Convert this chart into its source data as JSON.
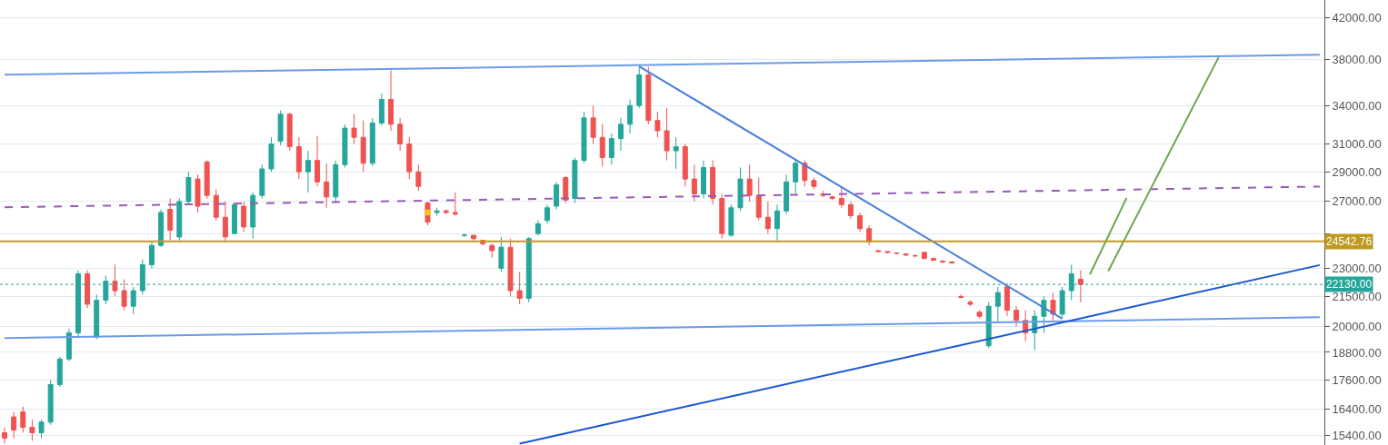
{
  "chart_data": {
    "type": "candlestick",
    "log": "y",
    "grid": "y",
    "tick_labels": "y",
    "categories": [
      null,
      null,
      null,
      null,
      null,
      null,
      null,
      null,
      null,
      null,
      null,
      null,
      null,
      null,
      null,
      null,
      null,
      null,
      null,
      null,
      null,
      null,
      null,
      null,
      null,
      null,
      null,
      null,
      null,
      null,
      null,
      null,
      null,
      null,
      null,
      null,
      null,
      null,
      null,
      null,
      null,
      null,
      null,
      null,
      null,
      null,
      null,
      null,
      null,
      null,
      null,
      null,
      null,
      null,
      null,
      null,
      null,
      null,
      null,
      null,
      null,
      null,
      null,
      null,
      null,
      null,
      null,
      null,
      null,
      null,
      null,
      null,
      null,
      null,
      null,
      null,
      null,
      null,
      null,
      null,
      null,
      null,
      null,
      null,
      null,
      null,
      null,
      null,
      null,
      null,
      null,
      null,
      null,
      null,
      null,
      null,
      null,
      null,
      null,
      null,
      null,
      null,
      null,
      null,
      null,
      null,
      null,
      null,
      null,
      null,
      null,
      null,
      null,
      null,
      null,
      null,
      null,
      null,
      null,
      null,
      null,
      null,
      null,
      null,
      null,
      null,
      null,
      null,
      null,
      null,
      null,
      null,
      null,
      null,
      null,
      null,
      null,
      null,
      null,
      null,
      null,
      null,
      null,
      null
    ],
    "ohlc": [
      [
        15500,
        15700,
        15100,
        15300
      ],
      [
        16100,
        16300,
        15300,
        15600
      ],
      [
        16300,
        16500,
        15500,
        15700
      ],
      [
        15700,
        16000,
        15200,
        15500
      ],
      [
        15500,
        16000,
        15300,
        15900
      ],
      [
        15900,
        17600,
        15800,
        17400
      ],
      [
        17400,
        18600,
        17300,
        18500
      ],
      [
        18500,
        19900,
        18400,
        19700
      ],
      [
        19700,
        22900,
        19500,
        22700
      ],
      [
        22700,
        22900,
        20900,
        21100
      ],
      [
        19500,
        21600,
        19400,
        21300
      ],
      [
        21300,
        22600,
        21100,
        22300
      ],
      [
        22300,
        23200,
        21500,
        21800
      ],
      [
        21800,
        22400,
        20800,
        21000
      ],
      [
        21000,
        22000,
        20600,
        21800
      ],
      [
        21800,
        23500,
        21600,
        23200
      ],
      [
        23200,
        24500,
        23000,
        24300
      ],
      [
        24300,
        26500,
        24200,
        26300
      ],
      [
        26500,
        27200,
        24600,
        25200
      ],
      [
        24800,
        27200,
        24600,
        27000
      ],
      [
        27000,
        29000,
        26800,
        28600
      ],
      [
        28500,
        28800,
        26300,
        26700
      ],
      [
        29700,
        29800,
        27200,
        27400
      ],
      [
        27400,
        27800,
        25800,
        26000
      ],
      [
        26000,
        27000,
        24500,
        24800
      ],
      [
        25000,
        26900,
        25000,
        26800
      ],
      [
        26700,
        27000,
        25100,
        25400
      ],
      [
        25400,
        27600,
        24700,
        27400
      ],
      [
        27400,
        29500,
        27200,
        29200
      ],
      [
        29200,
        31500,
        29000,
        31000
      ],
      [
        31200,
        33600,
        30900,
        33300
      ],
      [
        33300,
        33400,
        30500,
        30800
      ],
      [
        30800,
        31500,
        28500,
        29000
      ],
      [
        29000,
        30500,
        27600,
        29800
      ],
      [
        29800,
        31600,
        28000,
        28300
      ],
      [
        28300,
        29600,
        26600,
        27300
      ],
      [
        27300,
        29800,
        27000,
        29500
      ],
      [
        29500,
        32500,
        29300,
        32200
      ],
      [
        32200,
        33300,
        31000,
        31500
      ],
      [
        31500,
        32800,
        29000,
        29600
      ],
      [
        29600,
        33000,
        29400,
        32600
      ],
      [
        32600,
        35000,
        32400,
        34500
      ],
      [
        34500,
        37000,
        32000,
        32500
      ],
      [
        32500,
        33000,
        30500,
        31000
      ],
      [
        31000,
        31500,
        28500,
        29000
      ],
      [
        29000,
        29500,
        27700,
        28000
      ],
      [
        26900,
        27000,
        25500,
        25700
      ],
      [
        26300,
        26600,
        26100,
        26400
      ],
      [
        26400,
        26500,
        26200,
        26300
      ],
      [
        26300,
        27600,
        26100,
        26200
      ],
      [
        24900,
        25000,
        24800,
        24900
      ],
      [
        24900,
        24900,
        24600,
        24700
      ],
      [
        24600,
        24600,
        24300,
        24400
      ],
      [
        24300,
        24400,
        23600,
        24000
      ],
      [
        23000,
        24800,
        22800,
        24200
      ],
      [
        24200,
        24700,
        21500,
        21800
      ],
      [
        21800,
        22800,
        21100,
        21400
      ],
      [
        21400,
        24800,
        21200,
        24700
      ],
      [
        25000,
        25800,
        24900,
        25600
      ],
      [
        25800,
        26800,
        25600,
        26600
      ],
      [
        26700,
        28300,
        26500,
        28100
      ],
      [
        28600,
        28700,
        26900,
        27100
      ],
      [
        27200,
        30000,
        26900,
        29800
      ],
      [
        29800,
        33500,
        29600,
        33000
      ],
      [
        33000,
        34000,
        31000,
        31500
      ],
      [
        31500,
        32500,
        29400,
        30000
      ],
      [
        30000,
        31800,
        29500,
        31400
      ],
      [
        31400,
        33000,
        30500,
        32500
      ],
      [
        32500,
        34500,
        31800,
        34000
      ],
      [
        34000,
        37300,
        33800,
        36600
      ],
      [
        36600,
        37300,
        32500,
        32800
      ],
      [
        32800,
        33500,
        31500,
        32000
      ],
      [
        32000,
        33800,
        29800,
        30500
      ],
      [
        30500,
        31500,
        29200,
        30800
      ],
      [
        30800,
        31000,
        28000,
        28500
      ],
      [
        28500,
        29500,
        27000,
        27500
      ],
      [
        27500,
        29800,
        27200,
        29300
      ],
      [
        29300,
        29800,
        26800,
        27200
      ],
      [
        27200,
        27500,
        24700,
        25000
      ],
      [
        24900,
        26800,
        24800,
        26600
      ],
      [
        26600,
        29300,
        26400,
        28500
      ],
      [
        28500,
        29500,
        27000,
        27400
      ],
      [
        27400,
        28600,
        25800,
        26000
      ],
      [
        26000,
        27000,
        25000,
        25300
      ],
      [
        25300,
        26800,
        24600,
        26400
      ],
      [
        26400,
        28800,
        26200,
        28300
      ],
      [
        28300,
        29900,
        27500,
        29600
      ],
      [
        29600,
        29800,
        28000,
        28400
      ],
      [
        28400,
        28600,
        27800,
        28000
      ],
      [
        27500,
        27700,
        27300,
        27400
      ],
      [
        27300,
        27400,
        27100,
        27200
      ],
      [
        27200,
        28000,
        26600,
        26800
      ],
      [
        26800,
        27000,
        25900,
        26100
      ],
      [
        26100,
        26300,
        25100,
        25300
      ],
      [
        25300,
        25500,
        24300,
        24500
      ],
      [
        24000,
        24000,
        23900,
        23950
      ],
      [
        23950,
        23950,
        23850,
        23900
      ],
      [
        23850,
        23900,
        23800,
        23850
      ],
      [
        23800,
        23850,
        23700,
        23750
      ],
      [
        23700,
        23800,
        23650,
        23700
      ],
      [
        23900,
        23900,
        23500,
        23550
      ],
      [
        23550,
        23600,
        23400,
        23450
      ],
      [
        23400,
        23450,
        23300,
        23350
      ],
      [
        23350,
        23400,
        23250,
        23300
      ],
      [
        21500,
        21600,
        21400,
        21450
      ],
      [
        21200,
        21300,
        21000,
        21100
      ],
      [
        20700,
        20800,
        20400,
        20500
      ],
      [
        19100,
        21200,
        19000,
        21000
      ],
      [
        21000,
        22000,
        20200,
        21700
      ],
      [
        22000,
        22200,
        20500,
        20800
      ],
      [
        20800,
        21000,
        20000,
        20300
      ],
      [
        20300,
        20800,
        19300,
        19700
      ],
      [
        19700,
        20800,
        18900,
        20500
      ],
      [
        20500,
        21500,
        19700,
        21300
      ],
      [
        21300,
        21700,
        20300,
        20600
      ],
      [
        20600,
        22000,
        20400,
        21800
      ],
      [
        21800,
        23200,
        21300,
        22700
      ],
      [
        22400,
        22900,
        21200,
        22130
      ],
      null,
      null,
      null,
      null,
      null,
      null,
      null,
      null,
      null,
      null,
      null,
      null,
      null,
      null,
      null,
      null,
      null,
      null,
      null,
      null,
      null,
      null,
      null,
      null,
      null,
      null
    ],
    "colors": [
      "#ef5350",
      "#ef5350",
      "#ef5350",
      "#ef5350",
      "#26a69a",
      "#26a69a",
      "#26a69a",
      "#26a69a",
      "#26a69a",
      "#ef5350",
      "#26a69a",
      "#26a69a",
      "#ef5350",
      "#ef5350",
      "#26a69a",
      "#26a69a",
      "#26a69a",
      "#26a69a",
      "#ef5350",
      "#26a69a",
      "#26a69a",
      "#ef5350",
      "#ef5350",
      "#ef5350",
      "#ef5350",
      "#26a69a",
      "#ef5350",
      "#26a69a",
      "#26a69a",
      "#26a69a",
      "#26a69a",
      "#ef5350",
      "#ef5350",
      "#26a69a",
      "#ef5350",
      "#ef5350",
      "#26a69a",
      "#26a69a",
      "#ef5350",
      "#ef5350",
      "#26a69a",
      "#26a69a",
      "#ef5350",
      "#ef5350",
      "#ef5350",
      "#ef5350",
      "#ef5350",
      "#26a69a",
      "#ef5350",
      "#ef5350",
      "#26a69a",
      "#ef5350",
      "#ef5350",
      "#ef5350",
      "#26a69a",
      "#ef5350",
      "#ef5350",
      "#26a69a",
      "#26a69a",
      "#26a69a",
      "#26a69a",
      "#ef5350",
      "#26a69a",
      "#26a69a",
      "#ef5350",
      "#ef5350",
      "#26a69a",
      "#26a69a",
      "#26a69a",
      "#26a69a",
      "#ef5350",
      "#ef5350",
      "#ef5350",
      "#26a69a",
      "#ef5350",
      "#ef5350",
      "#26a69a",
      "#ef5350",
      "#ef5350",
      "#26a69a",
      "#26a69a",
      "#ef5350",
      "#ef5350",
      "#ef5350",
      "#26a69a",
      "#26a69a",
      "#26a69a",
      "#ef5350",
      "#ef5350",
      "#ef5350",
      "#ef5350",
      "#ef5350",
      "#ef5350",
      "#ef5350",
      "#ef5350",
      "#ef5350",
      "#ef5350",
      "#ef5350",
      "#ef5350",
      "#ef5350",
      "#ef5350",
      "#ef5350",
      "#ef5350",
      "#ef5350",
      "#ef5350",
      "#ef5350",
      "#ef5350",
      "#26a69a",
      "#26a69a",
      "#ef5350",
      "#ef5350",
      "#ef5350",
      "#26a69a",
      "#26a69a",
      "#ef5350",
      "#26a69a",
      "#26a69a",
      "#ef5350",
      null,
      null,
      null,
      null,
      null,
      null,
      null,
      null,
      null,
      null,
      null,
      null,
      null,
      null,
      null,
      null,
      null,
      null,
      null,
      null,
      null,
      null,
      null,
      null,
      null,
      null
    ],
    "series": [
      {
        "type": "line",
        "color": "#6a9be8",
        "values": [
          36600,
          null,
          null,
          null,
          null,
          null,
          null,
          null,
          null,
          null,
          null,
          null,
          null,
          null,
          null,
          null,
          null,
          null,
          null,
          null,
          null,
          null,
          null,
          null,
          null,
          null,
          null,
          null,
          null,
          null,
          null,
          null,
          null,
          null,
          null,
          null,
          null,
          null,
          null,
          null,
          null,
          null,
          null,
          null,
          null,
          null,
          null,
          null,
          null,
          null,
          null,
          null,
          null,
          null,
          null,
          null,
          null,
          null,
          null,
          null,
          null,
          null,
          null,
          null,
          null,
          null,
          null,
          null,
          null,
          null,
          null,
          null,
          null,
          null,
          null,
          null,
          null,
          null,
          null,
          null,
          null,
          null,
          null,
          null,
          null,
          null,
          null,
          null,
          null,
          null,
          null,
          null,
          null,
          null,
          null,
          null,
          null,
          null,
          null,
          null,
          null,
          null,
          null,
          null,
          null,
          null,
          null,
          null,
          null,
          null,
          null,
          null,
          null,
          null,
          null,
          null,
          null,
          null,
          null,
          null,
          null,
          null,
          null,
          null,
          null,
          null,
          null,
          null,
          null,
          null,
          null,
          null,
          null,
          null,
          null,
          null,
          null,
          null,
          null,
          null,
          null,
          null,
          null,
          38400
        ]
      },
      {
        "type": "line",
        "color": "#6a9be8",
        "values": [
          19450,
          null,
          null,
          null,
          null,
          null,
          null,
          null,
          null,
          null,
          null,
          null,
          null,
          null,
          null,
          null,
          null,
          null,
          null,
          null,
          null,
          null,
          null,
          null,
          null,
          null,
          null,
          null,
          null,
          null,
          null,
          null,
          null,
          null,
          null,
          null,
          null,
          null,
          null,
          null,
          null,
          null,
          null,
          null,
          null,
          null,
          null,
          null,
          null,
          null,
          null,
          null,
          null,
          null,
          null,
          null,
          null,
          null,
          null,
          null,
          null,
          null,
          null,
          null,
          null,
          null,
          null,
          null,
          null,
          null,
          null,
          null,
          null,
          null,
          null,
          null,
          null,
          null,
          null,
          null,
          null,
          null,
          null,
          null,
          null,
          null,
          null,
          null,
          null,
          null,
          null,
          null,
          null,
          null,
          null,
          null,
          null,
          null,
          null,
          null,
          null,
          null,
          null,
          null,
          null,
          null,
          null,
          null,
          null,
          null,
          null,
          null,
          null,
          null,
          null,
          null,
          null,
          null,
          null,
          null,
          null,
          null,
          null,
          null,
          null,
          null,
          null,
          null,
          null,
          null,
          null,
          null,
          null,
          null,
          null,
          null,
          null,
          null,
          null,
          null,
          null,
          null,
          null,
          20450
        ]
      },
      {
        "type": "line",
        "color": "#4a7fd9",
        "values": [
          null,
          null,
          null,
          null,
          null,
          null,
          null,
          null,
          null,
          null,
          null,
          null,
          null,
          null,
          null,
          null,
          null,
          null,
          null,
          null,
          null,
          null,
          null,
          null,
          null,
          null,
          null,
          null,
          null,
          null,
          null,
          null,
          null,
          null,
          null,
          null,
          null,
          null,
          null,
          null,
          null,
          null,
          null,
          null,
          null,
          null,
          null,
          null,
          null,
          null,
          null,
          null,
          null,
          null,
          null,
          null,
          null,
          null,
          null,
          null,
          null,
          null,
          null,
          null,
          null,
          null,
          null,
          null,
          null,
          37340,
          null,
          null,
          null,
          null,
          null,
          null,
          null,
          null,
          null,
          null,
          null,
          null,
          null,
          null,
          null,
          null,
          null,
          null,
          null,
          null,
          null,
          null,
          null,
          null,
          null,
          null,
          null,
          null,
          null,
          null,
          null,
          null,
          null,
          null,
          null,
          null,
          null,
          null,
          null,
          null,
          null,
          null,
          null,
          null,
          null,
          20380,
          null,
          null,
          null,
          null,
          null,
          null,
          null,
          null,
          null,
          null,
          null,
          null,
          null,
          null,
          null,
          null,
          null,
          null,
          null,
          null,
          null,
          null,
          null,
          null,
          null,
          null,
          null,
          null
        ]
      },
      {
        "type": "line",
        "color": "#1a56d0",
        "values": [
          null,
          null,
          null,
          null,
          null,
          null,
          null,
          null,
          null,
          null,
          null,
          null,
          null,
          null,
          null,
          null,
          null,
          null,
          null,
          null,
          null,
          null,
          null,
          null,
          null,
          null,
          null,
          null,
          null,
          null,
          null,
          null,
          null,
          null,
          null,
          null,
          null,
          null,
          null,
          null,
          null,
          null,
          null,
          null,
          null,
          null,
          null,
          null,
          null,
          null,
          null,
          null,
          null,
          null,
          null,
          null,
          15100,
          null,
          null,
          null,
          null,
          null,
          null,
          null,
          null,
          null,
          null,
          null,
          null,
          null,
          null,
          null,
          null,
          null,
          null,
          null,
          null,
          null,
          null,
          null,
          null,
          null,
          null,
          null,
          null,
          null,
          null,
          null,
          null,
          null,
          null,
          null,
          null,
          null,
          null,
          null,
          null,
          null,
          null,
          null,
          null,
          null,
          null,
          null,
          null,
          null,
          null,
          null,
          null,
          null,
          null,
          null,
          null,
          null,
          null,
          null,
          null,
          null,
          null,
          null,
          null,
          null,
          null,
          null,
          null,
          null,
          null,
          null,
          null,
          null,
          null,
          null,
          null,
          null,
          null,
          null,
          null,
          null,
          null,
          null,
          null,
          null,
          null,
          23180
        ]
      },
      {
        "type": "line",
        "color": "#9b59b6",
        "line_style": "dashed",
        "values": [
          26630,
          null,
          null,
          null,
          null,
          null,
          null,
          null,
          null,
          null,
          null,
          null,
          null,
          null,
          null,
          null,
          null,
          null,
          null,
          null,
          null,
          null,
          null,
          null,
          null,
          null,
          null,
          null,
          null,
          null,
          null,
          null,
          null,
          null,
          null,
          null,
          null,
          null,
          null,
          null,
          null,
          null,
          null,
          null,
          null,
          null,
          null,
          null,
          null,
          null,
          null,
          null,
          null,
          null,
          null,
          null,
          null,
          null,
          null,
          null,
          null,
          null,
          null,
          null,
          null,
          null,
          null,
          null,
          null,
          null,
          null,
          null,
          null,
          null,
          null,
          null,
          null,
          null,
          null,
          null,
          null,
          null,
          null,
          null,
          null,
          null,
          null,
          null,
          null,
          null,
          null,
          null,
          null,
          null,
          null,
          null,
          null,
          null,
          null,
          null,
          null,
          null,
          null,
          null,
          null,
          null,
          null,
          null,
          null,
          null,
          null,
          null,
          null,
          null,
          null,
          null,
          null,
          null,
          null,
          null,
          null,
          null,
          null,
          null,
          null,
          null,
          null,
          null,
          null,
          null,
          null,
          null,
          null,
          null,
          null,
          null,
          null,
          null,
          null,
          null,
          null,
          null,
          null,
          27990
        ]
      },
      {
        "type": "line",
        "color": "#6aa84f",
        "values": [
          null,
          null,
          null,
          null,
          null,
          null,
          null,
          null,
          null,
          null,
          null,
          null,
          null,
          null,
          null,
          null,
          null,
          null,
          null,
          null,
          null,
          null,
          null,
          null,
          null,
          null,
          null,
          null,
          null,
          null,
          null,
          null,
          null,
          null,
          null,
          null,
          null,
          null,
          null,
          null,
          null,
          null,
          null,
          null,
          null,
          null,
          null,
          null,
          null,
          null,
          null,
          null,
          null,
          null,
          null,
          null,
          null,
          null,
          null,
          null,
          null,
          null,
          null,
          null,
          null,
          null,
          null,
          null,
          null,
          null,
          null,
          null,
          null,
          null,
          null,
          null,
          null,
          null,
          null,
          null,
          null,
          null,
          null,
          null,
          null,
          null,
          null,
          null,
          null,
          null,
          null,
          null,
          null,
          null,
          null,
          null,
          null,
          null,
          null,
          null,
          null,
          null,
          null,
          null,
          null,
          null,
          null,
          null,
          null,
          null,
          null,
          null,
          null,
          null,
          null,
          null,
          null,
          null,
          22660,
          null,
          null,
          null,
          27240,
          null,
          null,
          null,
          null,
          null,
          null,
          null,
          null,
          null,
          null,
          null,
          null,
          null,
          null,
          null,
          null,
          null,
          null,
          null,
          null,
          null
        ]
      },
      {
        "type": "line",
        "color": "#6aa84f",
        "values": [
          null,
          null,
          null,
          null,
          null,
          null,
          null,
          null,
          null,
          null,
          null,
          null,
          null,
          null,
          null,
          null,
          null,
          null,
          null,
          null,
          null,
          null,
          null,
          null,
          null,
          null,
          null,
          null,
          null,
          null,
          null,
          null,
          null,
          null,
          null,
          null,
          null,
          null,
          null,
          null,
          null,
          null,
          null,
          null,
          null,
          null,
          null,
          null,
          null,
          null,
          null,
          null,
          null,
          null,
          null,
          null,
          null,
          null,
          null,
          null,
          null,
          null,
          null,
          null,
          null,
          null,
          null,
          null,
          null,
          null,
          null,
          null,
          null,
          null,
          null,
          null,
          null,
          null,
          null,
          null,
          null,
          null,
          null,
          null,
          null,
          null,
          null,
          null,
          null,
          null,
          null,
          null,
          null,
          null,
          null,
          null,
          null,
          null,
          null,
          null,
          null,
          null,
          null,
          null,
          null,
          null,
          null,
          null,
          null,
          null,
          null,
          null,
          null,
          null,
          null,
          null,
          null,
          null,
          null,
          null,
          22850,
          null,
          null,
          null,
          null,
          null,
          null,
          null,
          null,
          null,
          null,
          null,
          38170,
          null,
          null,
          null,
          null,
          null,
          null,
          null,
          null,
          null,
          null,
          null
        ]
      },
      {
        "type": "scatter",
        "color": "#f5c518",
        "values": [
          null,
          null,
          null,
          null,
          null,
          null,
          null,
          null,
          null,
          null,
          null,
          null,
          null,
          null,
          null,
          null,
          null,
          null,
          null,
          null,
          null,
          null,
          null,
          null,
          null,
          null,
          null,
          null,
          null,
          null,
          null,
          null,
          null,
          null,
          null,
          null,
          null,
          null,
          null,
          null,
          null,
          null,
          null,
          null,
          null,
          null,
          26300,
          null,
          null,
          null,
          null,
          null,
          null,
          null,
          null,
          null,
          null,
          null,
          null,
          null,
          null,
          null,
          null,
          null,
          null,
          null,
          null,
          null,
          null,
          null,
          null,
          null,
          null,
          null,
          null,
          null,
          null,
          null,
          null,
          null,
          null,
          null,
          null,
          null,
          null,
          null,
          null,
          null,
          null,
          null,
          null,
          null,
          null,
          null,
          null,
          null,
          null,
          null,
          null,
          null,
          null,
          null,
          null,
          null,
          null,
          null,
          null,
          null,
          null,
          null,
          null,
          null,
          null,
          null,
          null,
          null,
          null,
          null,
          null,
          null,
          null,
          null,
          null,
          null,
          null,
          null,
          null,
          null,
          null,
          null,
          null,
          null,
          null,
          null,
          null,
          null,
          null,
          null,
          null,
          null,
          null,
          null,
          null,
          null
        ]
      }
    ],
    "ref_lines": [
      {
        "axis": "y",
        "value": 24542.76,
        "label": "24542.76",
        "color": "#c09a1e",
        "line_style": "solid"
      },
      {
        "axis": "y",
        "value": 22130,
        "label": "22130.00",
        "color": "#26a69a",
        "line_style": "dotted"
      }
    ],
    "ylim": [
      15050,
      43800
    ],
    "yticks": [
      {
        "value": 15400,
        "label": "15400.00"
      },
      {
        "value": 16400,
        "label": "16400.00"
      },
      {
        "value": 17600,
        "label": "17600.00"
      },
      {
        "value": 18800,
        "label": "18800.00"
      },
      {
        "value": 20000,
        "label": "20000.00"
      },
      {
        "value": 21500,
        "label": "21500.00"
      },
      {
        "value": 23000,
        "label": "23000.00"
      },
      {
        "value": 25000,
        "label": null
      },
      {
        "value": 27000,
        "label": "27000.00"
      },
      {
        "value": 29000,
        "label": "29000.00"
      },
      {
        "value": 31000,
        "label": "31000.00"
      },
      {
        "value": 34000,
        "label": "34000.00"
      },
      {
        "value": 38000,
        "label": "38000.00"
      },
      {
        "value": 42000,
        "label": "42000.00"
      }
    ]
  }
}
